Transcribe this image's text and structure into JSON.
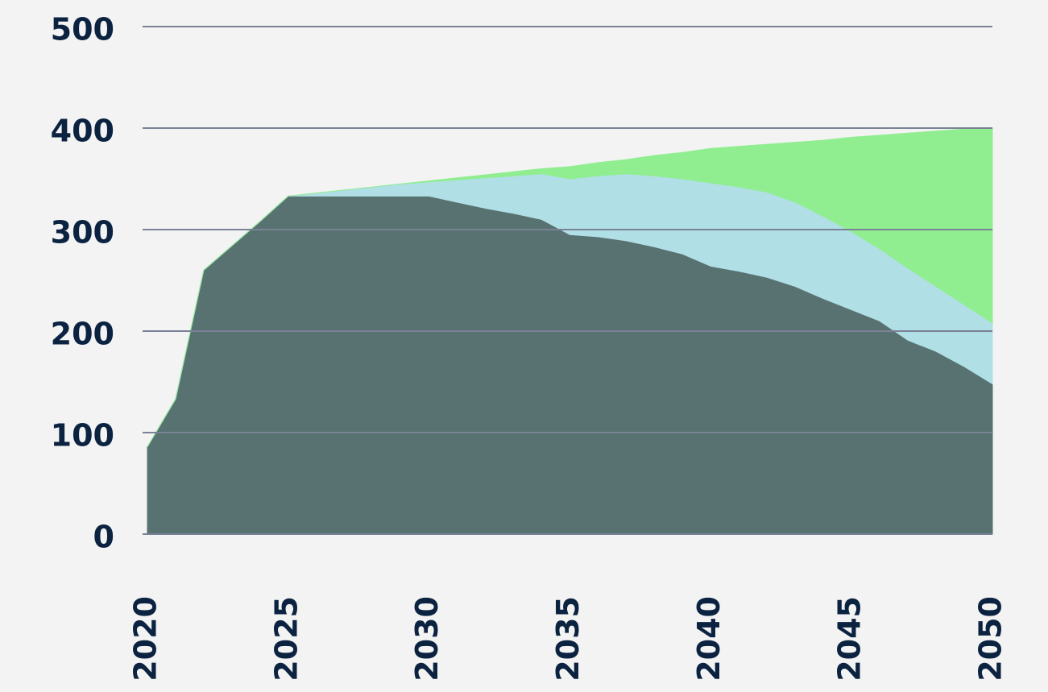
{
  "chart_data": {
    "type": "stacked_area",
    "x": [
      2020,
      2021,
      2022,
      2023,
      2024,
      2025,
      2026,
      2027,
      2028,
      2029,
      2030,
      2031,
      2032,
      2033,
      2034,
      2035,
      2036,
      2037,
      2038,
      2039,
      2040,
      2041,
      2042,
      2043,
      2044,
      2045,
      2046,
      2047,
      2048,
      2049,
      2050
    ],
    "series": [
      {
        "color": "#587272",
        "values": [
          86,
          133,
          260,
          284,
          308,
          333,
          333,
          333,
          333,
          333,
          333,
          327,
          321,
          316,
          310,
          295,
          293,
          289,
          283,
          276,
          264,
          259,
          253,
          244,
          232,
          221,
          210,
          191,
          180,
          165,
          148
        ]
      },
      {
        "color": "#b0dfe5",
        "values": [
          0,
          0,
          0,
          0,
          0,
          0,
          3,
          6,
          9,
          12,
          14,
          22,
          30,
          37,
          45,
          55,
          60,
          66,
          70,
          74,
          82,
          83,
          84,
          83,
          81,
          77,
          71,
          71,
          64,
          61,
          60
        ]
      },
      {
        "color": "#90ee90",
        "values": [
          0,
          0,
          0,
          0,
          0,
          0,
          0,
          0,
          0,
          0,
          1,
          2,
          3,
          4,
          5,
          12,
          13,
          14,
          20,
          26,
          34,
          40,
          47,
          59,
          75,
          93,
          112,
          133,
          153,
          173,
          192
        ]
      }
    ],
    "xlim": [
      2020,
      2050
    ],
    "xticks": [
      2020,
      2025,
      2030,
      2035,
      2040,
      2045,
      2050
    ],
    "ylim": [
      0,
      500
    ],
    "yticks": [
      0,
      100,
      200,
      300,
      400,
      500
    ],
    "grid": true
  }
}
